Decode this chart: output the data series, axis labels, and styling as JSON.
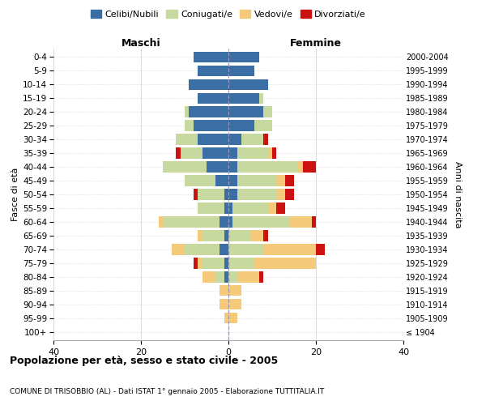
{
  "age_groups": [
    "100+",
    "95-99",
    "90-94",
    "85-89",
    "80-84",
    "75-79",
    "70-74",
    "65-69",
    "60-64",
    "55-59",
    "50-54",
    "45-49",
    "40-44",
    "35-39",
    "30-34",
    "25-29",
    "20-24",
    "15-19",
    "10-14",
    "5-9",
    "0-4"
  ],
  "birth_years": [
    "≤ 1904",
    "1905-1909",
    "1910-1914",
    "1915-1919",
    "1920-1924",
    "1925-1929",
    "1930-1934",
    "1935-1939",
    "1940-1944",
    "1945-1949",
    "1950-1954",
    "1955-1959",
    "1960-1964",
    "1965-1969",
    "1970-1974",
    "1975-1979",
    "1980-1984",
    "1985-1989",
    "1990-1994",
    "1995-1999",
    "2000-2004"
  ],
  "colors": {
    "celibe": "#3a6ea5",
    "coniugato": "#c8d9a0",
    "vedovo": "#f5c97a",
    "divorziato": "#cc1111"
  },
  "males": {
    "celibe": [
      0,
      0,
      0,
      0,
      1,
      1,
      2,
      1,
      2,
      1,
      1,
      3,
      5,
      6,
      7,
      8,
      9,
      7,
      9,
      7,
      8
    ],
    "coniugato": [
      0,
      0,
      0,
      0,
      2,
      5,
      8,
      5,
      13,
      6,
      6,
      7,
      10,
      5,
      5,
      2,
      1,
      0,
      0,
      0,
      0
    ],
    "vedovo": [
      0,
      1,
      2,
      2,
      3,
      1,
      3,
      1,
      1,
      0,
      0,
      0,
      0,
      0,
      0,
      0,
      0,
      0,
      0,
      0,
      0
    ],
    "divorziato": [
      0,
      0,
      0,
      0,
      0,
      1,
      0,
      0,
      0,
      0,
      1,
      0,
      0,
      1,
      0,
      0,
      0,
      0,
      0,
      0,
      0
    ]
  },
  "females": {
    "nubile": [
      0,
      0,
      0,
      0,
      0,
      0,
      0,
      0,
      1,
      1,
      2,
      2,
      2,
      2,
      3,
      6,
      8,
      7,
      9,
      6,
      7
    ],
    "coniugata": [
      0,
      0,
      0,
      0,
      2,
      6,
      8,
      5,
      13,
      8,
      9,
      9,
      14,
      7,
      5,
      4,
      2,
      1,
      0,
      0,
      0
    ],
    "vedova": [
      0,
      2,
      3,
      3,
      5,
      14,
      12,
      3,
      5,
      2,
      2,
      2,
      1,
      1,
      0,
      0,
      0,
      0,
      0,
      0,
      0
    ],
    "divorziata": [
      0,
      0,
      0,
      0,
      1,
      0,
      2,
      1,
      1,
      2,
      2,
      2,
      3,
      1,
      1,
      0,
      0,
      0,
      0,
      0,
      0
    ]
  },
  "title": "Popolazione per età, sesso e stato civile - 2005",
  "subtitle": "COMUNE DI TRISOBBIO (AL) - Dati ISTAT 1° gennaio 2005 - Elaborazione TUTTITALIA.IT",
  "maschi_label": "Maschi",
  "femmine_label": "Femmine",
  "ylabel_left": "Fasce di età",
  "ylabel_right": "Anni di nascita",
  "xlim": 40,
  "legend_labels": [
    "Celibi/Nubili",
    "Coniugati/e",
    "Vedovi/e",
    "Divorziati/e"
  ],
  "background_color": "#ffffff",
  "grid_color": "#cccccc"
}
